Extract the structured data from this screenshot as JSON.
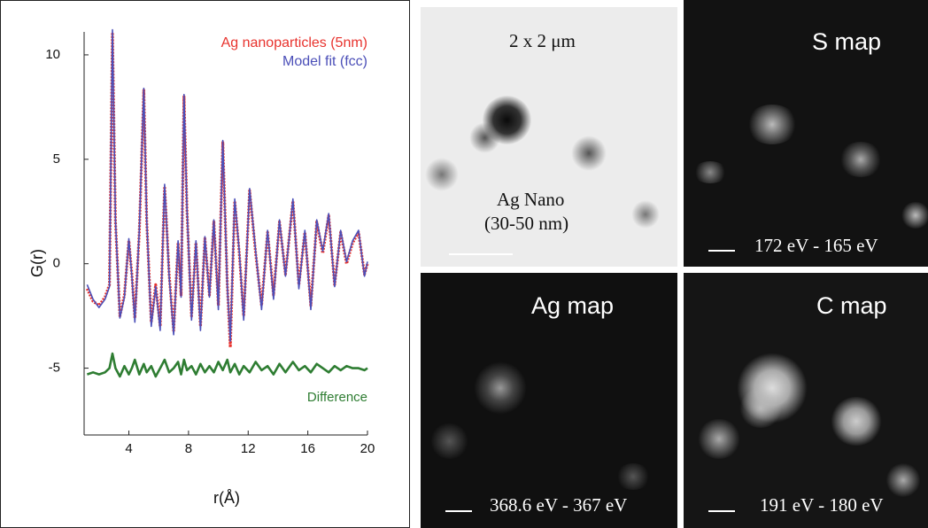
{
  "chart_data": {
    "type": "line",
    "ylabel": "G(r)",
    "xlabel": "r(Å)",
    "x": [
      1.2,
      1.6,
      2.0,
      2.4,
      2.7,
      2.9,
      3.1,
      3.4,
      3.7,
      4.0,
      4.2,
      4.4,
      4.7,
      5.0,
      5.2,
      5.5,
      5.8,
      6.1,
      6.4,
      6.7,
      7.0,
      7.3,
      7.5,
      7.7,
      7.9,
      8.2,
      8.5,
      8.8,
      9.1,
      9.4,
      9.7,
      10.0,
      10.3,
      10.6,
      10.8,
      11.1,
      11.4,
      11.7,
      12.1,
      12.5,
      12.9,
      13.3,
      13.7,
      14.1,
      14.5,
      15.0,
      15.4,
      15.8,
      16.2,
      16.6,
      17.0,
      17.4,
      17.8,
      18.2,
      18.6,
      19.0,
      19.4,
      19.8,
      20.0
    ],
    "series": [
      {
        "name": "Ag nanoparticles (5nm)",
        "color": "#e8332e",
        "values": [
          -1.2,
          -1.8,
          -2.0,
          -1.6,
          -1.0,
          11.0,
          2.0,
          -2.5,
          -1.5,
          1.1,
          -0.5,
          -2.6,
          1.5,
          8.3,
          2.0,
          -2.8,
          -1.0,
          -3.0,
          3.7,
          -0.5,
          -3.2,
          1.0,
          -1.5,
          8.0,
          2.5,
          -2.5,
          1.0,
          -3.0,
          1.2,
          -1.5,
          2.0,
          -2.0,
          5.8,
          -1.0,
          -4.0,
          3.0,
          0.5,
          -2.5,
          3.5,
          0.5,
          -2.0,
          1.5,
          -1.5,
          2.0,
          -0.5,
          3.0,
          -1.0,
          1.5,
          -2.0,
          2.0,
          0.5,
          2.3,
          -1.0,
          1.5,
          0.0,
          1.0,
          1.5,
          -0.5,
          0.0
        ]
      },
      {
        "name": "Model fit (fcc)",
        "color": "#4b4fb8",
        "values": [
          -1.0,
          -1.7,
          -2.1,
          -1.7,
          -1.1,
          11.2,
          2.1,
          -2.6,
          -1.6,
          1.2,
          -0.6,
          -2.8,
          1.6,
          8.4,
          2.1,
          -3.0,
          -1.1,
          -3.2,
          3.8,
          -0.6,
          -3.4,
          1.1,
          -1.6,
          8.1,
          2.6,
          -2.7,
          1.1,
          -3.2,
          1.3,
          -1.6,
          2.1,
          -2.2,
          5.9,
          -1.1,
          -3.7,
          3.1,
          0.6,
          -2.7,
          3.6,
          0.6,
          -2.2,
          1.6,
          -1.7,
          2.1,
          -0.6,
          3.1,
          -1.2,
          1.6,
          -2.2,
          2.1,
          0.6,
          2.4,
          -1.1,
          1.6,
          0.1,
          1.1,
          1.6,
          -0.6,
          0.1
        ]
      },
      {
        "name": "Difference",
        "color": "#2e7d32",
        "values": [
          -5.3,
          -5.2,
          -5.3,
          -5.2,
          -5.0,
          -4.3,
          -5.0,
          -5.4,
          -4.9,
          -5.3,
          -5.0,
          -4.6,
          -5.3,
          -4.8,
          -5.2,
          -4.9,
          -5.4,
          -5.0,
          -4.6,
          -5.2,
          -5.0,
          -4.7,
          -5.3,
          -4.6,
          -5.1,
          -4.9,
          -5.3,
          -4.8,
          -5.2,
          -4.9,
          -5.2,
          -4.7,
          -5.1,
          -4.6,
          -5.2,
          -4.8,
          -5.3,
          -4.9,
          -5.2,
          -4.7,
          -5.1,
          -4.9,
          -5.3,
          -4.8,
          -5.2,
          -4.7,
          -5.1,
          -4.9,
          -5.2,
          -4.8,
          -5.0,
          -5.2,
          -4.9,
          -5.1,
          -4.9,
          -5.0,
          -5.0,
          -5.1,
          -5.0
        ]
      }
    ],
    "xlim": [
      1,
      20
    ],
    "xticks": [
      4,
      8,
      12,
      16,
      20
    ],
    "ylim": [
      -8.2,
      11.1
    ],
    "yticks": [
      -5,
      0,
      5,
      10
    ],
    "grid": false,
    "legend": "upper right"
  },
  "panels": [
    {
      "labels": [
        "2 x 2 μm",
        "Ag Nano",
        "(30-50 nm)"
      ]
    },
    {
      "labels": [
        "S map",
        "172 eV - 165 eV"
      ]
    },
    {
      "labels": [
        "Ag map",
        "368.6 eV - 367 eV"
      ]
    },
    {
      "labels": [
        "C map",
        "191 eV - 180 eV"
      ]
    }
  ]
}
